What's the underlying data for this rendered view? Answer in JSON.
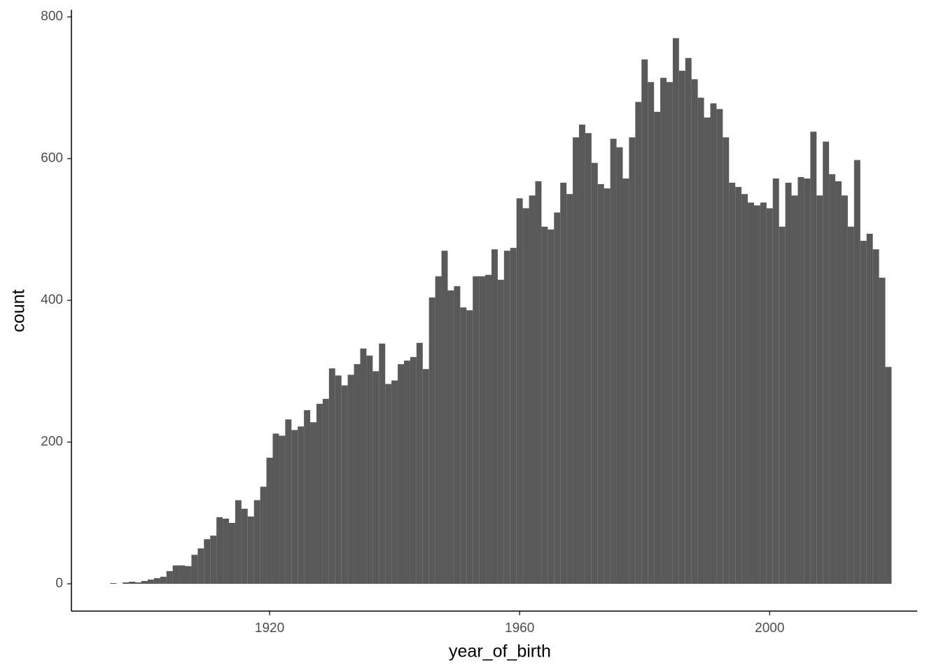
{
  "chart_data": {
    "type": "histogram",
    "xlabel": "year_of_birth",
    "ylabel": "count",
    "color": "#595959",
    "bins": [
      1894.5,
      1895.5,
      1896.5,
      1897.5,
      1898.5,
      1899.5,
      1900.5,
      1901.5,
      1902.5,
      1903.5,
      1904.5,
      1905.5,
      1906.5,
      1907.5,
      1908.5,
      1909.5,
      1910.5,
      1911.5,
      1912.5,
      1913.5,
      1914.5,
      1915.5,
      1916.5,
      1917.5,
      1918.5,
      1919.5,
      1920.5,
      1921.5,
      1922.5,
      1923.5,
      1924.5,
      1925.5,
      1926.5,
      1927.5,
      1928.5,
      1929.5,
      1930.5,
      1931.5,
      1932.5,
      1933.5,
      1934.5,
      1935.5,
      1936.5,
      1937.5,
      1938.5,
      1939.5,
      1940.5,
      1941.5,
      1942.5,
      1943.5,
      1944.5,
      1945.5,
      1946.5,
      1947.5,
      1948.5,
      1949.5,
      1950.5,
      1951.5,
      1952.5,
      1953.5,
      1954.5,
      1955.5,
      1956.5,
      1957.5,
      1958.5,
      1959.5,
      1960.5,
      1961.5,
      1962.5,
      1963.5,
      1964.5,
      1965.5,
      1966.5,
      1967.5,
      1968.5,
      1969.5,
      1970.5,
      1971.5,
      1972.5,
      1973.5,
      1974.5,
      1975.5,
      1976.5,
      1977.5,
      1978.5,
      1979.5,
      1980.5,
      1981.5,
      1982.5,
      1983.5,
      1984.5,
      1985.5,
      1986.5,
      1987.5,
      1988.5,
      1989.5,
      1990.5,
      1991.5,
      1992.5,
      1993.5,
      1994.5,
      1995.5,
      1996.5,
      1997.5,
      1998.5,
      1999.5,
      2000.5,
      2001.5,
      2002.5,
      2003.5,
      2004.5,
      2005.5,
      2006.5,
      2007.5,
      2008.5,
      2009.5,
      2010.5,
      2011.5,
      2012.5,
      2013.5,
      2014.5,
      2015.5,
      2016.5,
      2017.5,
      2018.5,
      2019.5
    ],
    "values": [
      1,
      0,
      2,
      3,
      2,
      4,
      6,
      8,
      10,
      18,
      26,
      26,
      25,
      41,
      50,
      63,
      68,
      94,
      92,
      86,
      118,
      106,
      95,
      118,
      137,
      178,
      212,
      209,
      232,
      217,
      222,
      245,
      228,
      254,
      261,
      304,
      294,
      280,
      295,
      310,
      332,
      322,
      300,
      339,
      282,
      287,
      310,
      315,
      320,
      340,
      303,
      404,
      434,
      470,
      414,
      420,
      390,
      386,
      434,
      434,
      436,
      472,
      429,
      470,
      474,
      544,
      530,
      548,
      568,
      504,
      500,
      524,
      566,
      550,
      630,
      648,
      636,
      594,
      564,
      558,
      628,
      616,
      572,
      630,
      680,
      740,
      708,
      666,
      714,
      708,
      770,
      724,
      742,
      712,
      686,
      658,
      678,
      670,
      630,
      566,
      560,
      550,
      538,
      534,
      538,
      530,
      572,
      504,
      566,
      548,
      574,
      572,
      638,
      548,
      624,
      578,
      568,
      548,
      504,
      598,
      484,
      494,
      472,
      432,
      306
    ],
    "xlim": [
      1888.3,
      2023.6
    ],
    "xticks": [
      1920,
      1960,
      2000
    ],
    "ylim": [
      -38.5,
      810
    ],
    "yticks": [
      0,
      200,
      400,
      600,
      800
    ],
    "grid": false
  }
}
